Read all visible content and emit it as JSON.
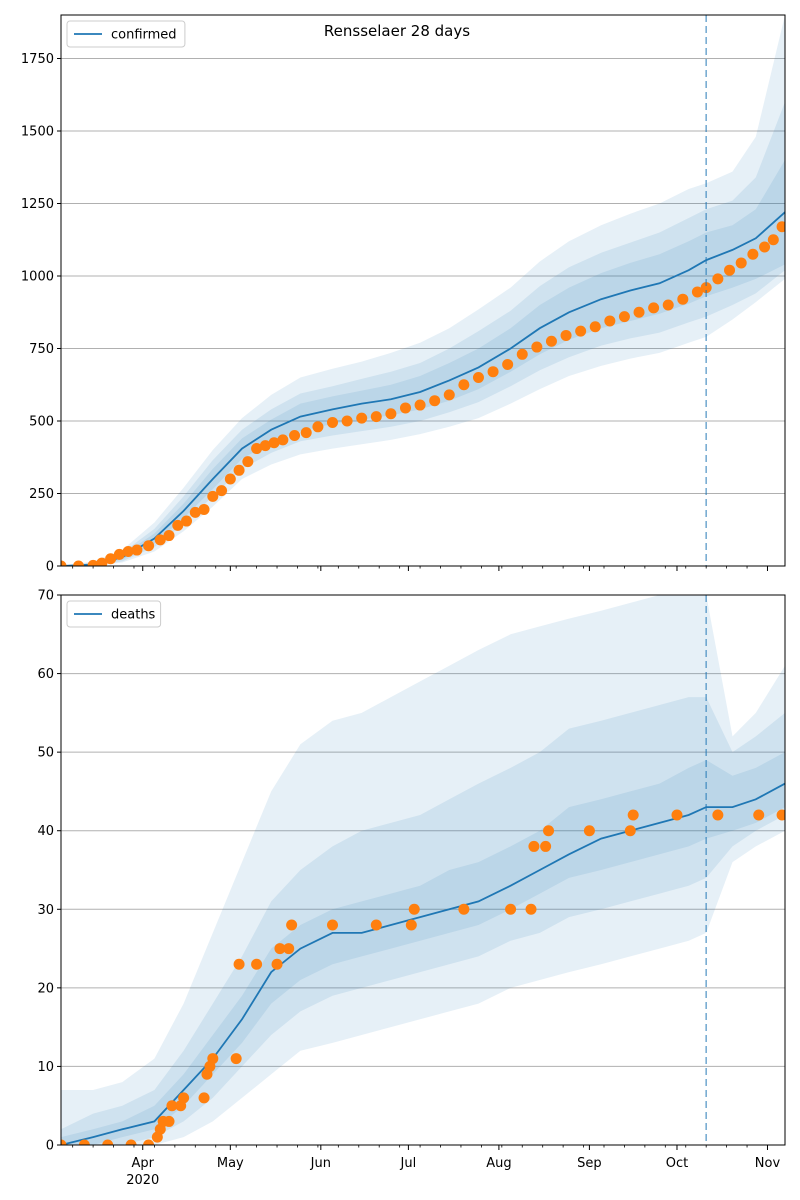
{
  "figure": {
    "title": "Rensselaer 28 days"
  },
  "colors": {
    "line": "#1f77b4",
    "observed": "#ff7f0e",
    "band": "#1f77b4",
    "grid": "#b0b0b0",
    "forecast_line": "#1f77b4"
  },
  "x_axis": {
    "ticks": [
      {
        "date": "2020-04-01",
        "label": "Apr",
        "sublabel": "2020"
      },
      {
        "date": "2020-05-01",
        "label": "May"
      },
      {
        "date": "2020-06-01",
        "label": "Jun"
      },
      {
        "date": "2020-07-01",
        "label": "Jul"
      },
      {
        "date": "2020-08-01",
        "label": "Aug"
      },
      {
        "date": "2020-09-01",
        "label": "Sep"
      },
      {
        "date": "2020-10-01",
        "label": "Oct"
      },
      {
        "date": "2020-11-01",
        "label": "Nov"
      }
    ],
    "xlim": [
      "2020-03-04",
      "2020-11-07"
    ]
  },
  "chart_data": [
    {
      "type": "line",
      "legend": "confirmed",
      "legend_position": "top-left",
      "ylim": [
        0,
        1900
      ],
      "yticks": [
        0,
        250,
        500,
        750,
        1000,
        1250,
        1500,
        1750
      ],
      "grid": "horizontal",
      "forecast_start": "2020-10-11",
      "x": [
        "2020-03-04",
        "2020-03-15",
        "2020-03-25",
        "2020-04-05",
        "2020-04-15",
        "2020-04-25",
        "2020-05-05",
        "2020-05-15",
        "2020-05-25",
        "2020-06-05",
        "2020-06-15",
        "2020-06-25",
        "2020-07-05",
        "2020-07-15",
        "2020-07-25",
        "2020-08-05",
        "2020-08-15",
        "2020-08-25",
        "2020-09-05",
        "2020-09-15",
        "2020-09-25",
        "2020-10-05",
        "2020-10-11",
        "2020-10-20",
        "2020-10-28",
        "2020-11-07"
      ],
      "model": [
        0,
        5,
        30,
        95,
        190,
        300,
        405,
        470,
        515,
        540,
        560,
        575,
        600,
        640,
        685,
        750,
        820,
        875,
        920,
        950,
        975,
        1020,
        1055,
        1090,
        1130,
        1220
      ],
      "band_50": [
        [
          0,
          0
        ],
        [
          2,
          8
        ],
        [
          22,
          38
        ],
        [
          78,
          112
        ],
        [
          165,
          215
        ],
        [
          265,
          335
        ],
        [
          370,
          440
        ],
        [
          425,
          505
        ],
        [
          465,
          560
        ],
        [
          490,
          585
        ],
        [
          505,
          605
        ],
        [
          520,
          625
        ],
        [
          540,
          655
        ],
        [
          570,
          700
        ],
        [
          610,
          750
        ],
        [
          670,
          820
        ],
        [
          730,
          900
        ],
        [
          780,
          960
        ],
        [
          820,
          1010
        ],
        [
          845,
          1045
        ],
        [
          870,
          1075
        ],
        [
          905,
          1120
        ],
        [
          930,
          1150
        ],
        [
          960,
          1175
        ],
        [
          990,
          1230
        ],
        [
          1040,
          1400
        ]
      ],
      "band_80": [
        [
          0,
          0
        ],
        [
          1,
          12
        ],
        [
          16,
          46
        ],
        [
          65,
          128
        ],
        [
          145,
          240
        ],
        [
          240,
          365
        ],
        [
          335,
          470
        ],
        [
          390,
          540
        ],
        [
          430,
          595
        ],
        [
          450,
          620
        ],
        [
          465,
          645
        ],
        [
          480,
          670
        ],
        [
          500,
          700
        ],
        [
          530,
          750
        ],
        [
          565,
          810
        ],
        [
          620,
          880
        ],
        [
          675,
          965
        ],
        [
          720,
          1030
        ],
        [
          760,
          1080
        ],
        [
          785,
          1115
        ],
        [
          805,
          1150
        ],
        [
          840,
          1200
        ],
        [
          860,
          1230
        ],
        [
          900,
          1260
        ],
        [
          940,
          1340
        ],
        [
          1020,
          1600
        ]
      ],
      "band_95": [
        [
          0,
          0
        ],
        [
          0,
          16
        ],
        [
          12,
          55
        ],
        [
          50,
          150
        ],
        [
          120,
          270
        ],
        [
          205,
          400
        ],
        [
          300,
          510
        ],
        [
          350,
          590
        ],
        [
          385,
          650
        ],
        [
          405,
          680
        ],
        [
          420,
          705
        ],
        [
          435,
          735
        ],
        [
          455,
          770
        ],
        [
          480,
          820
        ],
        [
          510,
          885
        ],
        [
          560,
          960
        ],
        [
          610,
          1050
        ],
        [
          655,
          1120
        ],
        [
          690,
          1175
        ],
        [
          715,
          1215
        ],
        [
          735,
          1250
        ],
        [
          770,
          1300
        ],
        [
          790,
          1320
        ],
        [
          850,
          1360
        ],
        [
          910,
          1480
        ],
        [
          990,
          1900
        ]
      ],
      "observed": [
        {
          "x": "2020-03-04",
          "y": 0
        },
        {
          "x": "2020-03-10",
          "y": 0
        },
        {
          "x": "2020-03-15",
          "y": 2
        },
        {
          "x": "2020-03-18",
          "y": 10
        },
        {
          "x": "2020-03-21",
          "y": 25
        },
        {
          "x": "2020-03-24",
          "y": 40
        },
        {
          "x": "2020-03-27",
          "y": 50
        },
        {
          "x": "2020-03-30",
          "y": 55
        },
        {
          "x": "2020-04-03",
          "y": 70
        },
        {
          "x": "2020-04-07",
          "y": 90
        },
        {
          "x": "2020-04-10",
          "y": 105
        },
        {
          "x": "2020-04-13",
          "y": 140
        },
        {
          "x": "2020-04-16",
          "y": 155
        },
        {
          "x": "2020-04-19",
          "y": 185
        },
        {
          "x": "2020-04-22",
          "y": 195
        },
        {
          "x": "2020-04-25",
          "y": 240
        },
        {
          "x": "2020-04-28",
          "y": 260
        },
        {
          "x": "2020-05-01",
          "y": 300
        },
        {
          "x": "2020-05-04",
          "y": 330
        },
        {
          "x": "2020-05-07",
          "y": 360
        },
        {
          "x": "2020-05-10",
          "y": 405
        },
        {
          "x": "2020-05-13",
          "y": 415
        },
        {
          "x": "2020-05-16",
          "y": 425
        },
        {
          "x": "2020-05-19",
          "y": 435
        },
        {
          "x": "2020-05-23",
          "y": 450
        },
        {
          "x": "2020-05-27",
          "y": 460
        },
        {
          "x": "2020-05-31",
          "y": 480
        },
        {
          "x": "2020-06-05",
          "y": 495
        },
        {
          "x": "2020-06-10",
          "y": 500
        },
        {
          "x": "2020-06-15",
          "y": 510
        },
        {
          "x": "2020-06-20",
          "y": 515
        },
        {
          "x": "2020-06-25",
          "y": 525
        },
        {
          "x": "2020-06-30",
          "y": 545
        },
        {
          "x": "2020-07-05",
          "y": 555
        },
        {
          "x": "2020-07-10",
          "y": 570
        },
        {
          "x": "2020-07-15",
          "y": 590
        },
        {
          "x": "2020-07-20",
          "y": 625
        },
        {
          "x": "2020-07-25",
          "y": 650
        },
        {
          "x": "2020-07-30",
          "y": 670
        },
        {
          "x": "2020-08-04",
          "y": 695
        },
        {
          "x": "2020-08-09",
          "y": 730
        },
        {
          "x": "2020-08-14",
          "y": 755
        },
        {
          "x": "2020-08-19",
          "y": 775
        },
        {
          "x": "2020-08-24",
          "y": 795
        },
        {
          "x": "2020-08-29",
          "y": 810
        },
        {
          "x": "2020-09-03",
          "y": 825
        },
        {
          "x": "2020-09-08",
          "y": 845
        },
        {
          "x": "2020-09-13",
          "y": 860
        },
        {
          "x": "2020-09-18",
          "y": 875
        },
        {
          "x": "2020-09-23",
          "y": 890
        },
        {
          "x": "2020-09-28",
          "y": 900
        },
        {
          "x": "2020-10-03",
          "y": 920
        },
        {
          "x": "2020-10-08",
          "y": 945
        },
        {
          "x": "2020-10-11",
          "y": 960
        },
        {
          "x": "2020-10-15",
          "y": 990
        },
        {
          "x": "2020-10-19",
          "y": 1020
        },
        {
          "x": "2020-10-23",
          "y": 1045
        },
        {
          "x": "2020-10-27",
          "y": 1075
        },
        {
          "x": "2020-10-31",
          "y": 1100
        },
        {
          "x": "2020-11-03",
          "y": 1125
        },
        {
          "x": "2020-11-06",
          "y": 1170
        }
      ]
    },
    {
      "type": "line",
      "legend": "deaths",
      "legend_position": "top-left",
      "ylim": [
        0,
        70
      ],
      "yticks": [
        0,
        10,
        20,
        30,
        40,
        50,
        60,
        70
      ],
      "grid": "horizontal",
      "forecast_start": "2020-10-11",
      "x": [
        "2020-03-04",
        "2020-03-15",
        "2020-03-25",
        "2020-04-05",
        "2020-04-15",
        "2020-04-25",
        "2020-05-05",
        "2020-05-15",
        "2020-05-25",
        "2020-06-05",
        "2020-06-15",
        "2020-06-25",
        "2020-07-05",
        "2020-07-15",
        "2020-07-25",
        "2020-08-05",
        "2020-08-15",
        "2020-08-25",
        "2020-09-05",
        "2020-09-15",
        "2020-09-25",
        "2020-10-05",
        "2020-10-11",
        "2020-10-20",
        "2020-10-28",
        "2020-11-07"
      ],
      "model": [
        0,
        1,
        2,
        3,
        7,
        11,
        16,
        22,
        25,
        27,
        27,
        28,
        29,
        30,
        31,
        33,
        35,
        37,
        39,
        40,
        41,
        42,
        43,
        43,
        44,
        46
      ],
      "band_50": [
        [
          0,
          1
        ],
        [
          0,
          2
        ],
        [
          1,
          3
        ],
        [
          2,
          5
        ],
        [
          5,
          9
        ],
        [
          9,
          14
        ],
        [
          13,
          19
        ],
        [
          18,
          25
        ],
        [
          21,
          28
        ],
        [
          23,
          30
        ],
        [
          24,
          31
        ],
        [
          25,
          32
        ],
        [
          26,
          33
        ],
        [
          27,
          35
        ],
        [
          28,
          36
        ],
        [
          30,
          38
        ],
        [
          32,
          40
        ],
        [
          34,
          43
        ],
        [
          35,
          44
        ],
        [
          36,
          45
        ],
        [
          37,
          46
        ],
        [
          38,
          48
        ],
        [
          39,
          49
        ],
        [
          40,
          47
        ],
        [
          41,
          48
        ],
        [
          43,
          50
        ]
      ],
      "band_80": [
        [
          0,
          2
        ],
        [
          0,
          4
        ],
        [
          0,
          5
        ],
        [
          1,
          7
        ],
        [
          3,
          12
        ],
        [
          6,
          18
        ],
        [
          10,
          24
        ],
        [
          14,
          31
        ],
        [
          17,
          35
        ],
        [
          19,
          38
        ],
        [
          20,
          40
        ],
        [
          21,
          41
        ],
        [
          22,
          42
        ],
        [
          23,
          44
        ],
        [
          24,
          46
        ],
        [
          26,
          48
        ],
        [
          27,
          50
        ],
        [
          29,
          53
        ],
        [
          30,
          54
        ],
        [
          31,
          55
        ],
        [
          32,
          56
        ],
        [
          33,
          57
        ],
        [
          34,
          57
        ],
        [
          38,
          50
        ],
        [
          40,
          52
        ],
        [
          42,
          55
        ]
      ],
      "band_95": [
        [
          0,
          7
        ],
        [
          0,
          7
        ],
        [
          0,
          8
        ],
        [
          0,
          11
        ],
        [
          1,
          18
        ],
        [
          3,
          27
        ],
        [
          6,
          36
        ],
        [
          9,
          45
        ],
        [
          12,
          51
        ],
        [
          13,
          54
        ],
        [
          14,
          55
        ],
        [
          15,
          57
        ],
        [
          16,
          59
        ],
        [
          17,
          61
        ],
        [
          18,
          63
        ],
        [
          20,
          65
        ],
        [
          21,
          66
        ],
        [
          22,
          67
        ],
        [
          23,
          68
        ],
        [
          24,
          69
        ],
        [
          25,
          70
        ],
        [
          26,
          70
        ],
        [
          27,
          70
        ],
        [
          36,
          52
        ],
        [
          38,
          55
        ],
        [
          40,
          61
        ]
      ],
      "observed": [
        {
          "x": "2020-03-04",
          "y": 0
        },
        {
          "x": "2020-03-12",
          "y": 0
        },
        {
          "x": "2020-03-20",
          "y": 0
        },
        {
          "x": "2020-03-28",
          "y": 0
        },
        {
          "x": "2020-04-03",
          "y": 0
        },
        {
          "x": "2020-04-06",
          "y": 1
        },
        {
          "x": "2020-04-07",
          "y": 2
        },
        {
          "x": "2020-04-08",
          "y": 3
        },
        {
          "x": "2020-04-10",
          "y": 3
        },
        {
          "x": "2020-04-11",
          "y": 5
        },
        {
          "x": "2020-04-14",
          "y": 5
        },
        {
          "x": "2020-04-15",
          "y": 6
        },
        {
          "x": "2020-04-22",
          "y": 6
        },
        {
          "x": "2020-04-23",
          "y": 9
        },
        {
          "x": "2020-04-24",
          "y": 10
        },
        {
          "x": "2020-04-25",
          "y": 11
        },
        {
          "x": "2020-05-03",
          "y": 11
        },
        {
          "x": "2020-05-04",
          "y": 23
        },
        {
          "x": "2020-05-10",
          "y": 23
        },
        {
          "x": "2020-05-17",
          "y": 23
        },
        {
          "x": "2020-05-18",
          "y": 25
        },
        {
          "x": "2020-05-21",
          "y": 25
        },
        {
          "x": "2020-05-22",
          "y": 28
        },
        {
          "x": "2020-06-05",
          "y": 28
        },
        {
          "x": "2020-06-20",
          "y": 28
        },
        {
          "x": "2020-07-02",
          "y": 28
        },
        {
          "x": "2020-07-03",
          "y": 30
        },
        {
          "x": "2020-07-20",
          "y": 30
        },
        {
          "x": "2020-08-05",
          "y": 30
        },
        {
          "x": "2020-08-12",
          "y": 30
        },
        {
          "x": "2020-08-13",
          "y": 38
        },
        {
          "x": "2020-08-17",
          "y": 38
        },
        {
          "x": "2020-08-18",
          "y": 40
        },
        {
          "x": "2020-09-01",
          "y": 40
        },
        {
          "x": "2020-09-15",
          "y": 40
        },
        {
          "x": "2020-09-16",
          "y": 42
        },
        {
          "x": "2020-10-01",
          "y": 42
        },
        {
          "x": "2020-10-15",
          "y": 42
        },
        {
          "x": "2020-10-29",
          "y": 42
        },
        {
          "x": "2020-11-06",
          "y": 42
        }
      ]
    }
  ]
}
